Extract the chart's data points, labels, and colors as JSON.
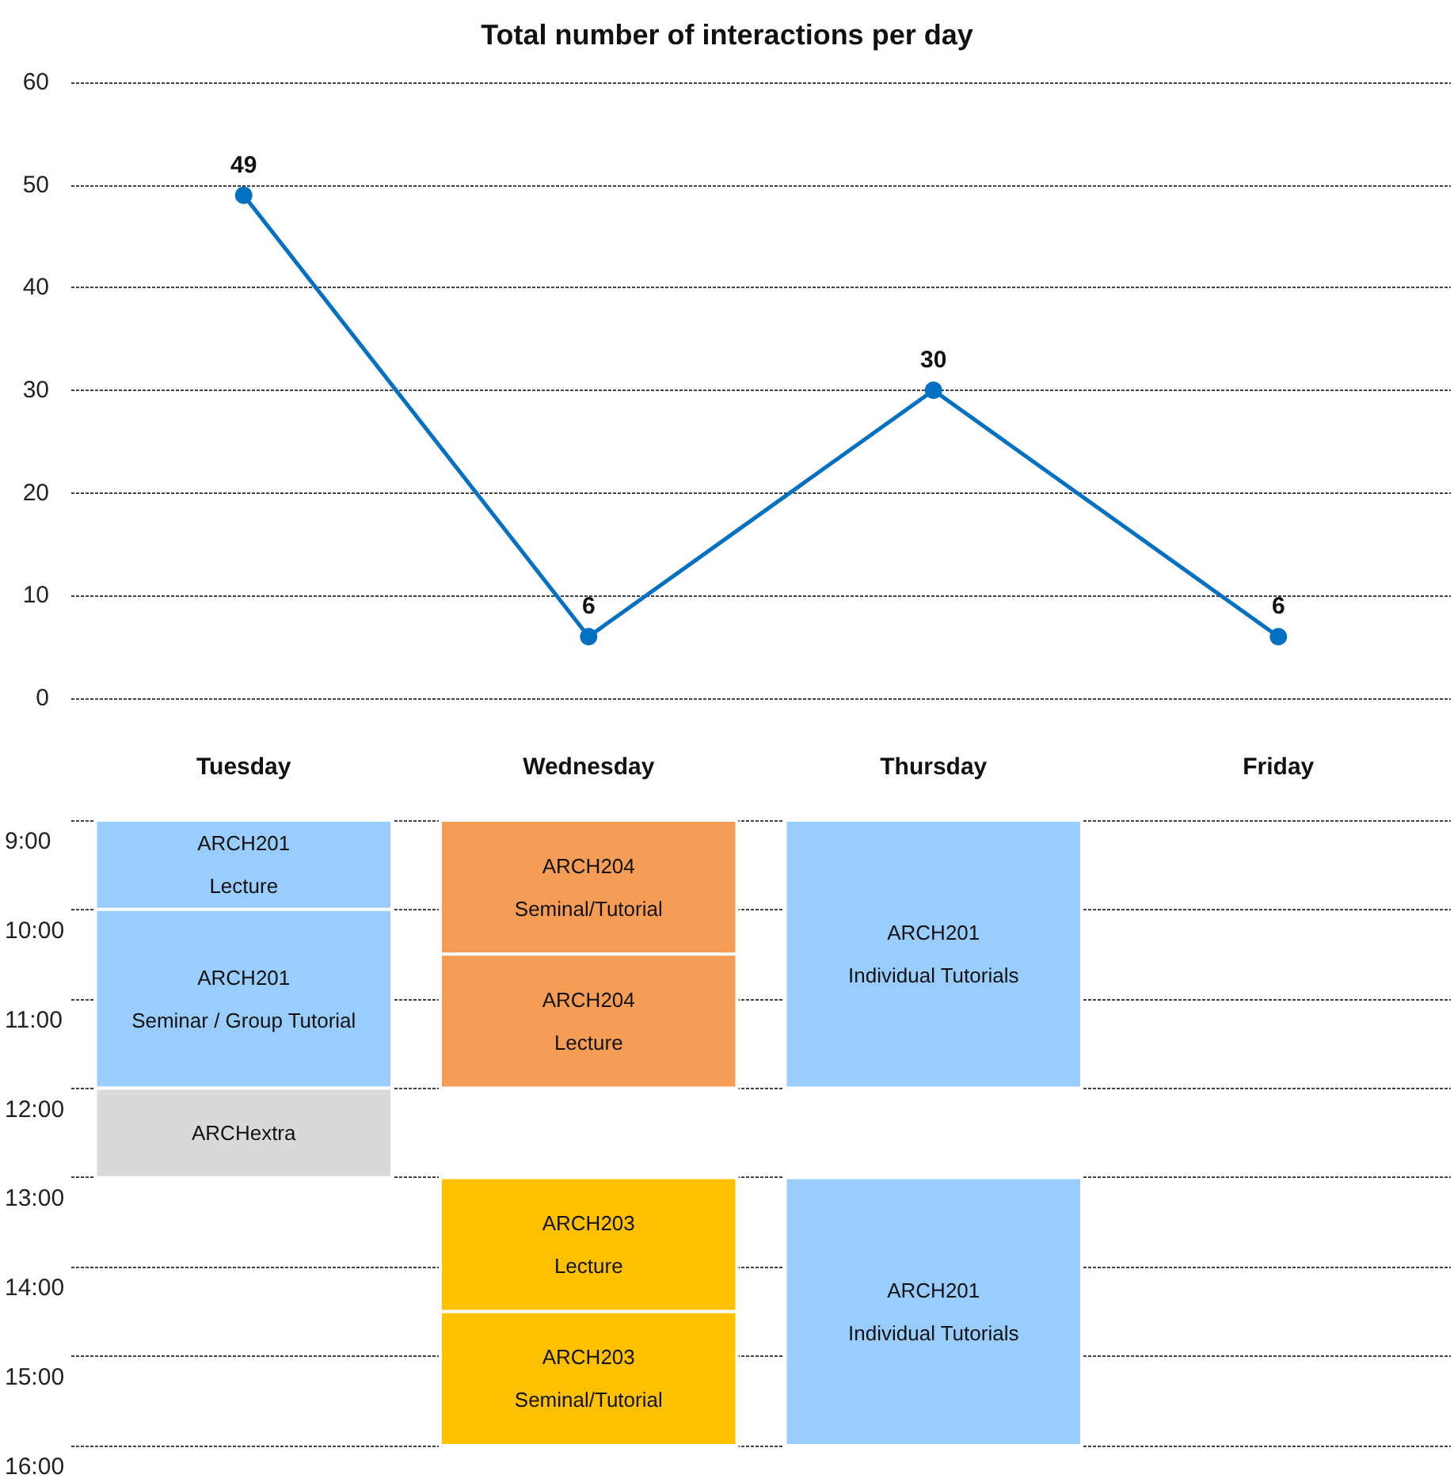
{
  "chart_data": [
    {
      "type": "line",
      "title": "Total number of interactions per day",
      "categories": [
        "Tuesday",
        "Wednesday",
        "Thursday",
        "Friday"
      ],
      "series": [
        {
          "color": "#0070c0",
          "values": [
            49,
            6,
            30,
            6
          ]
        }
      ],
      "ylim": [
        0,
        60
      ],
      "yticks": [
        0,
        10,
        20,
        30,
        40,
        50,
        60
      ],
      "grid": "y",
      "data_labels": true,
      "marker": "circle",
      "line_style": "solid"
    },
    {
      "type": "bar",
      "categories": [
        null,
        null,
        null,
        null
      ],
      "series": [
        {
          "base": [
            9,
            9,
            9,
            null
          ],
          "values": [
            1,
            1.5,
            3,
            null
          ],
          "colors": [
            "#99ccff",
            "#f59d56",
            "#99ccff",
            null
          ],
          "value_labels": [
            "ARCH201\nLecture",
            "ARCH204\nSeminal/Tutorial",
            "ARCH201\nIndividual Tutorials",
            null
          ]
        },
        {
          "base": [
            10,
            10.5,
            null,
            null
          ],
          "values": [
            2,
            1.5,
            null,
            null
          ],
          "colors": [
            "#99ccff",
            "#f59d56",
            null,
            null
          ],
          "value_labels": [
            "ARCH201\nSeminar / Group Tutorial",
            "ARCH204\nLecture",
            null,
            null
          ]
        },
        {
          "base": [
            12,
            13,
            13,
            null
          ],
          "values": [
            1,
            1.5,
            3,
            null
          ],
          "colors": [
            "#d9d9d9",
            "#ffc000",
            "#99ccff",
            null
          ],
          "value_labels": [
            "ARCHextra",
            "ARCH203\nLecture",
            "ARCH201\nIndividual Tutorials",
            null
          ]
        },
        {
          "base": [
            null,
            14.5,
            null,
            null
          ],
          "values": [
            null,
            1.5,
            null,
            null
          ],
          "colors": [
            null,
            "#ffc000",
            null,
            null
          ],
          "value_labels": [
            null,
            "ARCH203\nSeminal/Tutorial",
            null,
            null
          ]
        }
      ],
      "ylim": [
        16,
        9
      ],
      "yticks": [
        {
          "value": 9,
          "label": "9:00"
        },
        {
          "value": 10,
          "label": "10:00"
        },
        {
          "value": 11,
          "label": "11:00"
        },
        {
          "value": 12,
          "label": "12:00"
        },
        {
          "value": 13,
          "label": "13:00"
        },
        {
          "value": 14,
          "label": "14:00"
        },
        {
          "value": 15,
          "label": "15:00"
        },
        {
          "value": 16,
          "label": "16:00"
        }
      ],
      "grid": "y",
      "tick_labels": "y"
    }
  ]
}
